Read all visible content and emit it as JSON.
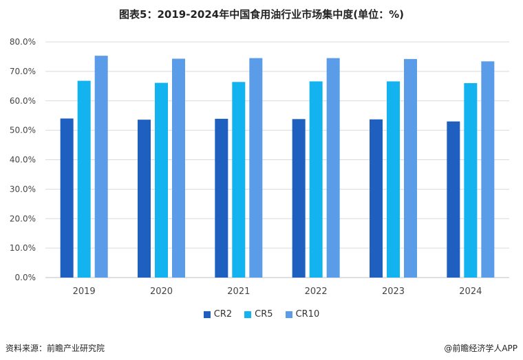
{
  "title": "图表5：2019-2024年中国食用油行业市场集中度(单位：%)",
  "footer": {
    "source": "资料来源：前瞻产业研究院",
    "brand": "@前瞻经济学人APP"
  },
  "chart_data": {
    "type": "bar",
    "categories": [
      "2019",
      "2020",
      "2021",
      "2022",
      "2023",
      "2024"
    ],
    "series": [
      {
        "name": "CR2",
        "color": "#1f5fbf",
        "values": [
          54.0,
          53.6,
          53.9,
          53.8,
          53.7,
          53.0
        ]
      },
      {
        "name": "CR5",
        "color": "#12b3ee",
        "values": [
          66.8,
          66.1,
          66.4,
          66.6,
          66.6,
          66.0
        ]
      },
      {
        "name": "CR10",
        "color": "#5b9ce8",
        "values": [
          75.3,
          74.3,
          74.5,
          74.5,
          74.2,
          73.4
        ]
      }
    ],
    "ylim": [
      0,
      80
    ],
    "yticks": [
      "0.0%",
      "10.0%",
      "20.0%",
      "30.0%",
      "40.0%",
      "50.0%",
      "60.0%",
      "70.0%",
      "80.0%"
    ],
    "ytick_values": [
      0,
      10,
      20,
      30,
      40,
      50,
      60,
      70,
      80
    ],
    "grid": true,
    "legend_position": "bottom"
  }
}
